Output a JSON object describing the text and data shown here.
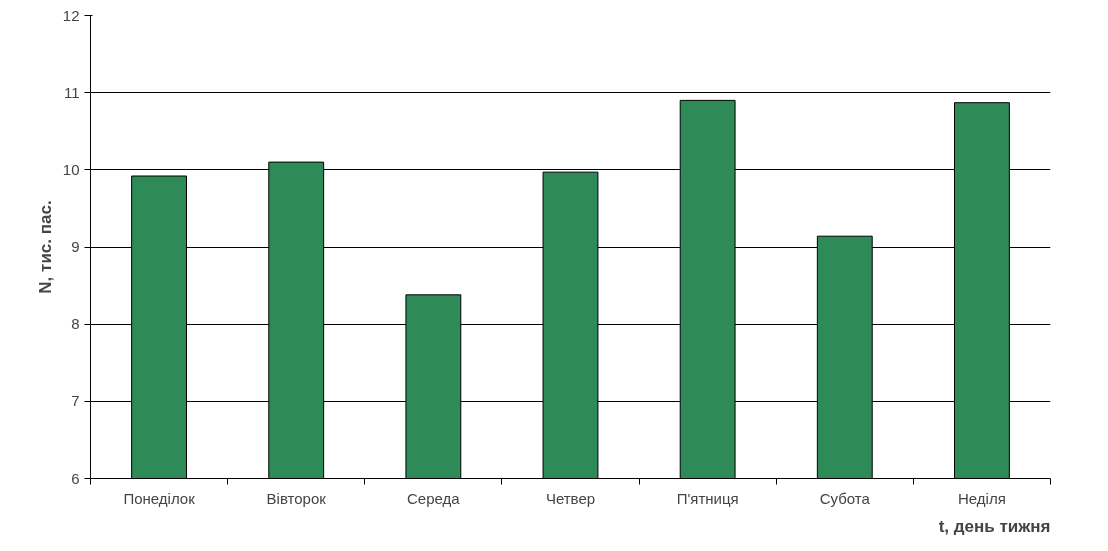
{
  "chart_data": {
    "type": "bar",
    "xlabel": "t, день тижня",
    "ylabel": "N, тис. пас.",
    "categories": [
      "Понеділок",
      "Вівторок",
      "Середа",
      "Четвер",
      "П'ятниця",
      "Субота",
      "Неділя"
    ],
    "values": [
      9.92,
      10.1,
      8.38,
      9.97,
      10.9,
      9.14,
      10.87
    ],
    "color": "#2e8b57",
    "ylim": [
      6,
      12
    ],
    "yticks": [
      6,
      7,
      8,
      9,
      10,
      11,
      12
    ],
    "grid": "y"
  }
}
